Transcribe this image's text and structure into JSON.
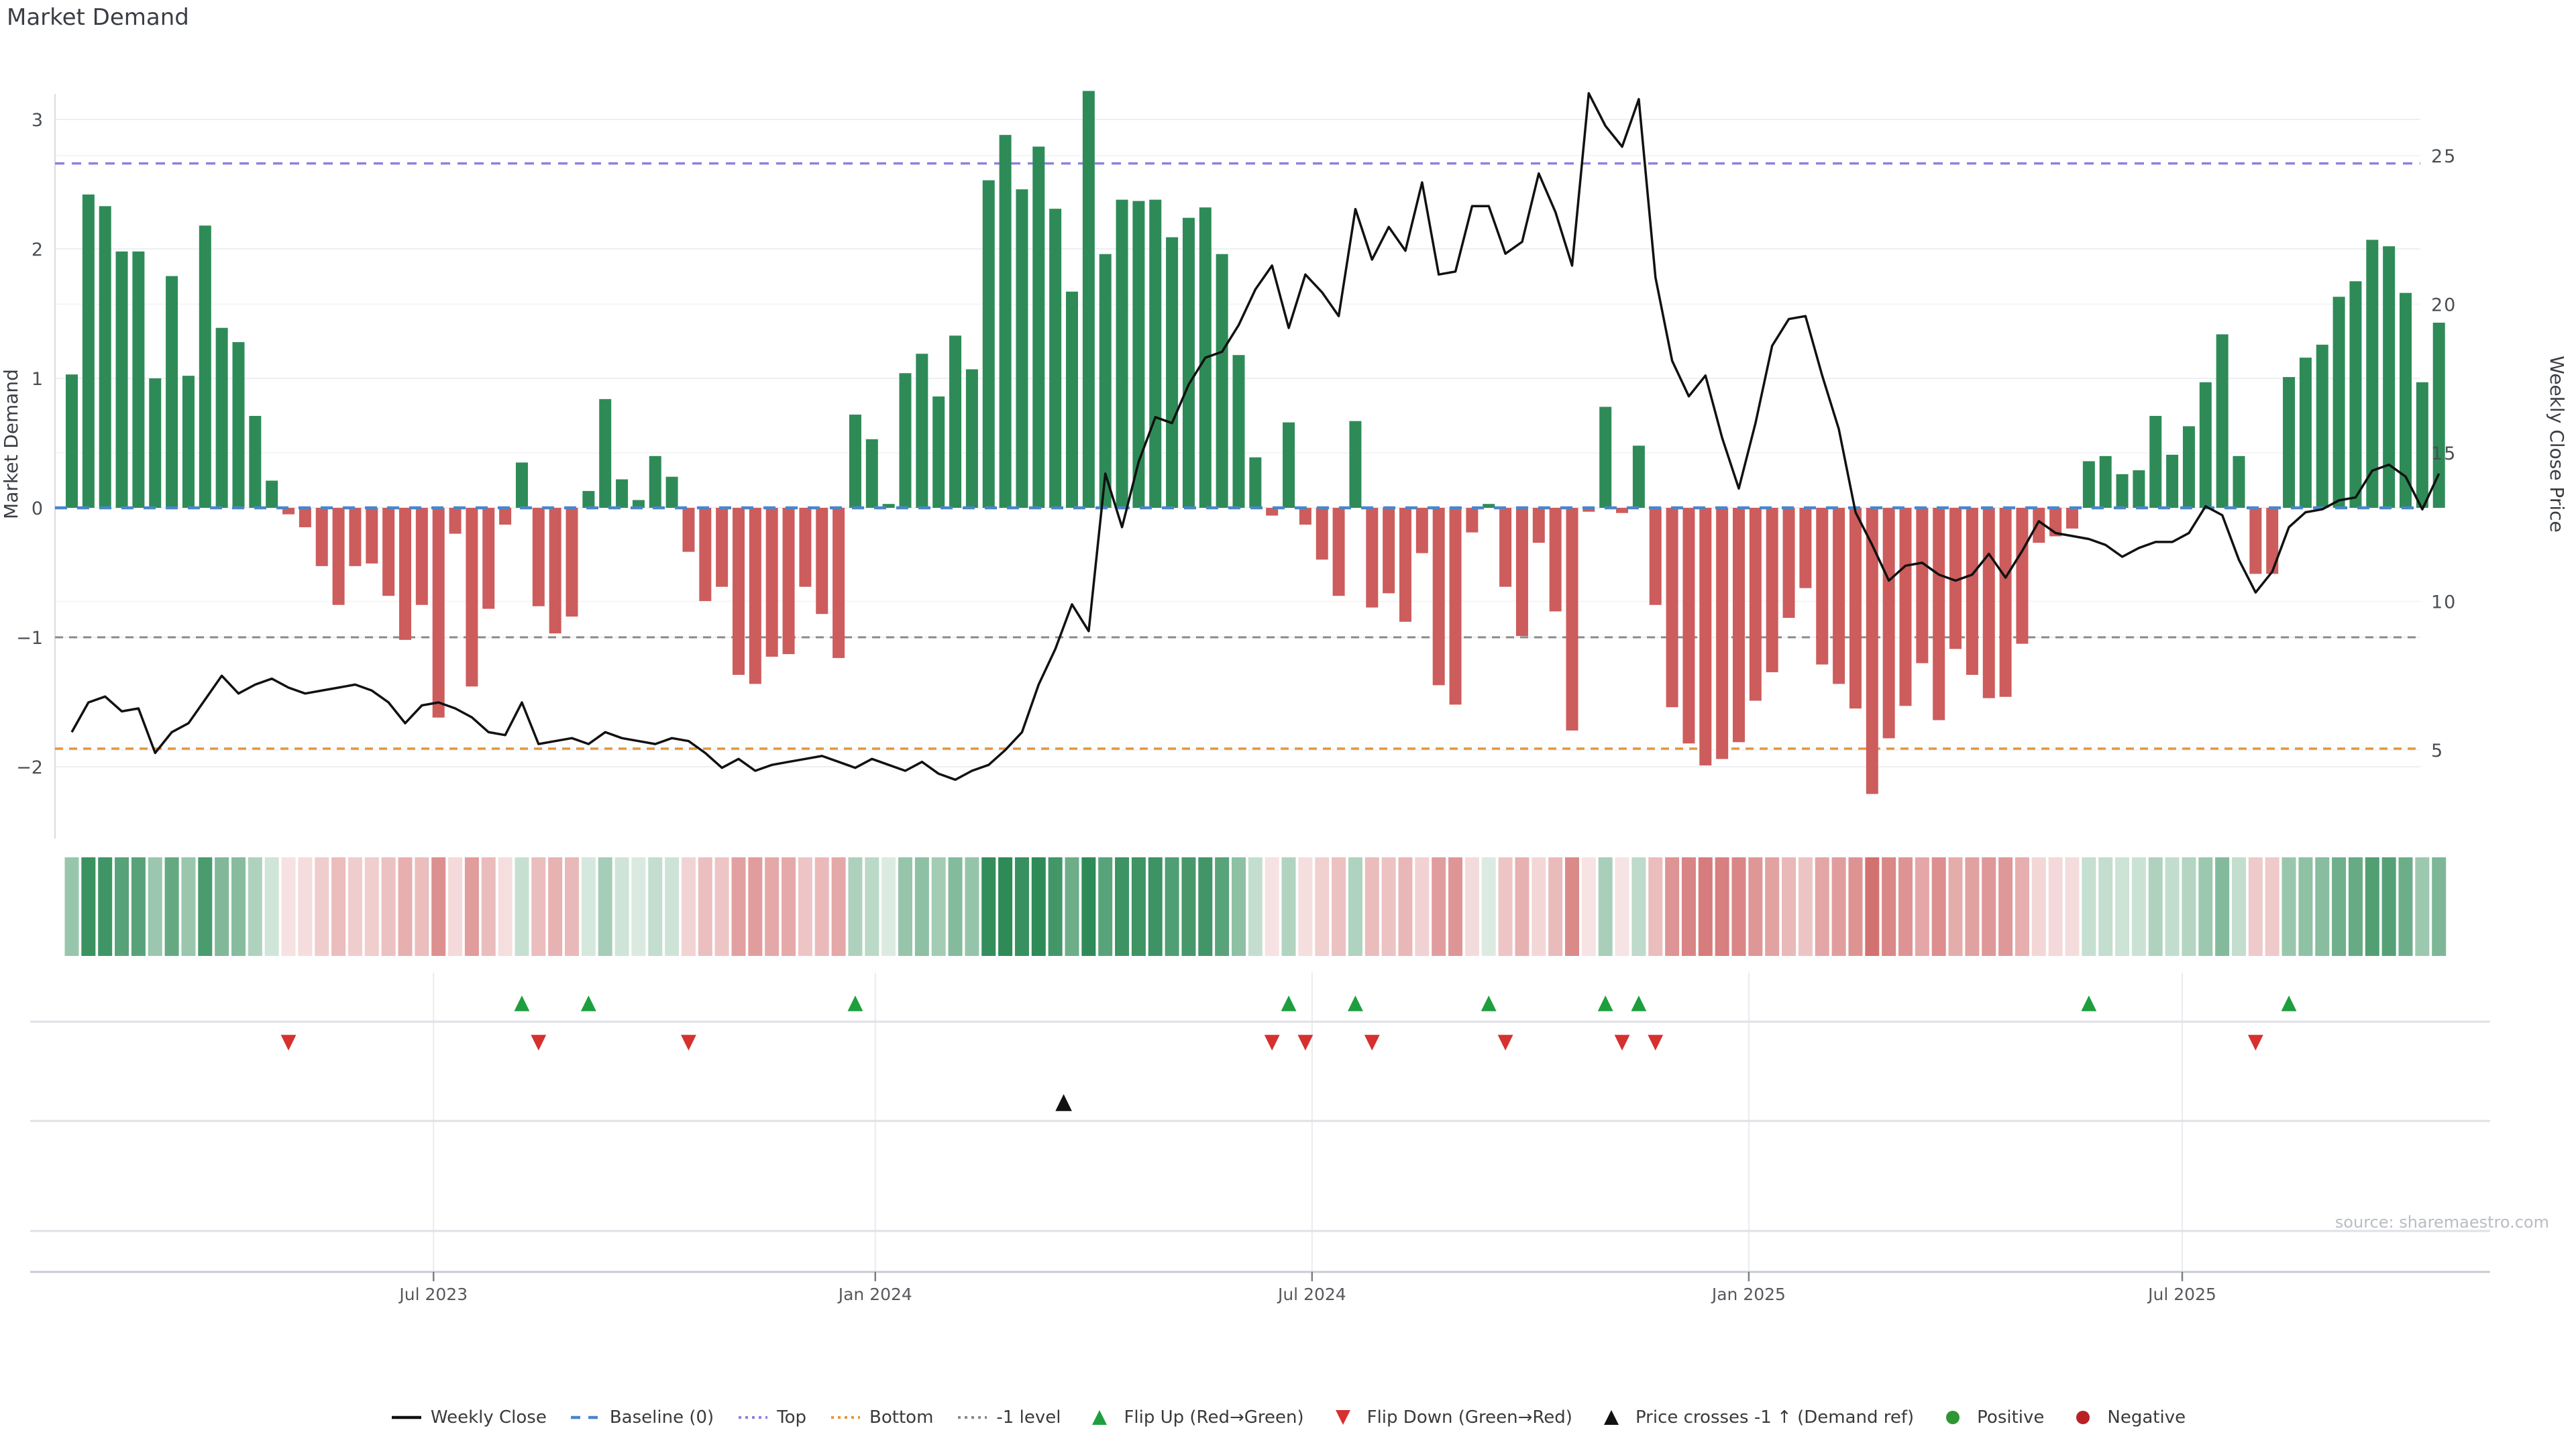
{
  "title": "Market Demand",
  "source": "source: sharemaestro.com",
  "chart_data": {
    "type": "bar",
    "subtype": "weekly demand bars + weekly close price line (dual axis) + intensity heatmap strip + event marker rows",
    "title": "Market Demand",
    "n_weeks": 143,
    "x_axis": {
      "tick_labels": [
        "Jul 2023",
        "Jan 2024",
        "Jul 2024",
        "Jan 2025",
        "Jul 2025"
      ],
      "tick_week_index": [
        21.7,
        48.2,
        74.4,
        100.6,
        126.6
      ]
    },
    "left_axis": {
      "label": "Market Demand",
      "tick_labels": [
        "3",
        "2",
        "1",
        "0",
        "−1",
        "−2"
      ],
      "tick_values": [
        3,
        2,
        1,
        0,
        -1,
        -2
      ],
      "range": [
        -2.8,
        3.25
      ]
    },
    "right_axis": {
      "label": "Weekly Close Price",
      "tick_labels": [
        "25",
        "20",
        "15",
        "10",
        "5"
      ],
      "tick_values": [
        25,
        20,
        15,
        10,
        5
      ],
      "range": [
        2.2,
        27.3
      ]
    },
    "reference_lines": {
      "top": 2.66,
      "baseline": 0.0,
      "minus_one_level": -1.0,
      "bottom": -1.86
    },
    "series": [
      {
        "name": "Market Demand",
        "type": "bar",
        "values": [
          1.03,
          2.42,
          2.33,
          1.98,
          1.98,
          1.0,
          1.79,
          1.02,
          2.18,
          1.39,
          1.28,
          0.71,
          0.21,
          -0.05,
          -0.15,
          -0.45,
          -0.75,
          -0.45,
          -0.43,
          -0.68,
          -1.02,
          -0.75,
          -1.62,
          -0.2,
          -1.38,
          -0.78,
          -0.13,
          0.35,
          -0.76,
          -0.97,
          -0.84,
          0.13,
          0.84,
          0.22,
          0.06,
          0.4,
          0.24,
          -0.34,
          -0.72,
          -0.61,
          -1.29,
          -1.36,
          -1.15,
          -1.13,
          -0.61,
          -0.82,
          -1.16,
          0.72,
          0.53,
          0.03,
          1.04,
          1.19,
          0.86,
          1.33,
          1.07,
          2.53,
          2.88,
          2.46,
          2.79,
          2.31,
          1.67,
          3.22,
          1.96,
          2.38,
          2.37,
          2.38,
          2.09,
          2.24,
          2.32,
          1.96,
          1.18,
          0.39,
          -0.06,
          0.66,
          -0.13,
          -0.4,
          -0.68,
          0.67,
          -0.77,
          -0.66,
          -0.88,
          -0.35,
          -1.37,
          -1.52,
          -0.19,
          0.03,
          -0.61,
          -0.99,
          -0.27,
          -0.8,
          -1.72,
          -0.03,
          0.78,
          -0.04,
          0.48,
          -0.75,
          -1.54,
          -1.82,
          -1.99,
          -1.94,
          -1.81,
          -1.49,
          -1.27,
          -0.85,
          -0.62,
          -1.21,
          -1.36,
          -1.55,
          -2.21,
          -1.78,
          -1.53,
          -1.2,
          -1.64,
          -1.09,
          -1.29,
          -1.47,
          -1.46,
          -1.05,
          -0.27,
          -0.22,
          -0.16,
          0.36,
          0.4,
          0.26,
          0.29,
          0.71,
          0.41,
          0.63,
          0.97,
          1.34,
          0.4,
          -0.51,
          -0.51,
          1.01,
          1.16,
          1.26,
          1.63,
          1.75,
          2.07,
          2.02,
          1.66,
          0.97,
          1.43
        ]
      },
      {
        "name": "Weekly Close",
        "type": "line",
        "axis": "right",
        "values": [
          5.6,
          6.6,
          6.8,
          6.3,
          6.4,
          4.9,
          5.6,
          5.9,
          6.7,
          7.5,
          6.9,
          7.2,
          7.4,
          7.1,
          6.9,
          7.0,
          7.1,
          7.2,
          7.0,
          6.6,
          5.9,
          6.5,
          6.6,
          6.4,
          6.1,
          5.6,
          5.5,
          6.6,
          5.2,
          5.3,
          5.4,
          5.2,
          5.6,
          5.4,
          5.3,
          5.2,
          5.4,
          5.3,
          4.9,
          4.4,
          4.7,
          4.3,
          4.5,
          4.6,
          4.7,
          4.8,
          4.6,
          4.4,
          4.7,
          4.5,
          4.3,
          4.6,
          4.2,
          4.0,
          4.3,
          4.5,
          5.0,
          5.6,
          7.2,
          8.4,
          9.9,
          9.0,
          14.3,
          12.5,
          14.7,
          16.2,
          16.0,
          17.3,
          18.2,
          18.4,
          19.3,
          20.5,
          21.3,
          19.2,
          21.0,
          20.4,
          19.6,
          23.2,
          21.5,
          22.6,
          21.8,
          24.1,
          21.0,
          21.1,
          23.3,
          23.3,
          21.7,
          22.1,
          24.4,
          23.1,
          21.3,
          27.1,
          26.0,
          25.3,
          26.9,
          20.9,
          18.1,
          16.9,
          17.6,
          15.5,
          13.8,
          16.0,
          18.6,
          19.5,
          19.6,
          17.6,
          15.8,
          13.0,
          11.9,
          10.7,
          11.2,
          11.3,
          10.9,
          10.7,
          10.9,
          11.6,
          10.8,
          11.7,
          12.7,
          12.3,
          12.2,
          12.1,
          11.9,
          11.5,
          11.8,
          12.0,
          12.0,
          12.3,
          13.2,
          12.9,
          11.4,
          10.3,
          11.0,
          12.5,
          13.0,
          13.1,
          13.4,
          13.5,
          14.4,
          14.6,
          14.2,
          13.1,
          14.3
        ]
      }
    ],
    "heatmap": {
      "description": "weekly strip colored by demand sign and intensity (green positive, red negative)",
      "values_from": "Market Demand"
    },
    "markers": {
      "flip_up_weeks": [
        27,
        31,
        47,
        73,
        77,
        85,
        92,
        94,
        121,
        133
      ],
      "flip_down_weeks": [
        13,
        28,
        37,
        72,
        74,
        78,
        86,
        93,
        95,
        131
      ],
      "price_cross_minus1_week": 59.5
    },
    "grid": "horizontal only in main chart; vertical date gridlines in marker panel",
    "legend_position": "bottom center"
  },
  "legend": {
    "items": [
      {
        "key": "weekly-close",
        "label": "Weekly Close",
        "swatch": "solid-line",
        "color": "#111111"
      },
      {
        "key": "baseline",
        "label": "Baseline (0)",
        "swatch": "dashed-line",
        "color": "#4a86c8"
      },
      {
        "key": "top",
        "label": "Top",
        "swatch": "dotted-line",
        "color": "#8c82e0"
      },
      {
        "key": "bottom",
        "label": "Bottom",
        "swatch": "dotted-line",
        "color": "#e5973c"
      },
      {
        "key": "minus-1-level",
        "label": "-1 level",
        "swatch": "dotted-line",
        "color": "#8a8a8a"
      },
      {
        "key": "flip-up",
        "label": "Flip Up (Red→Green)",
        "swatch": "triangle-up",
        "color": "#1f9e3d"
      },
      {
        "key": "flip-down",
        "label": "Flip Down (Green→Red)",
        "swatch": "triangle-down",
        "color": "#d6302f"
      },
      {
        "key": "price-cross",
        "label": "Price crosses -1 ↑ (Demand ref)",
        "swatch": "triangle-up",
        "color": "#111111"
      },
      {
        "key": "positive",
        "label": "Positive",
        "swatch": "dot",
        "color": "#2e9632"
      },
      {
        "key": "negative",
        "label": "Negative",
        "swatch": "dot",
        "color": "#b82227"
      }
    ]
  },
  "colors": {
    "bar_positive": "#2e8b57",
    "bar_negative": "#cd5c5c",
    "price_line": "#111111",
    "baseline_line": "#4a86c8",
    "top_line": "#8c82e0",
    "bottom_line": "#e5973c",
    "minus_one_line": "#8a8a8a",
    "flip_up": "#1f9e3d",
    "flip_down": "#d6302f",
    "price_cross": "#111111",
    "grid": "#edeff3",
    "grid_faint": "#f4f5f8",
    "spine": "#d9dce1",
    "panel_separator": "#dfe1e6",
    "panel_axis": "#c8cbd0",
    "tick_text": "#4a4f55",
    "source_text": "#b9bcc2"
  }
}
